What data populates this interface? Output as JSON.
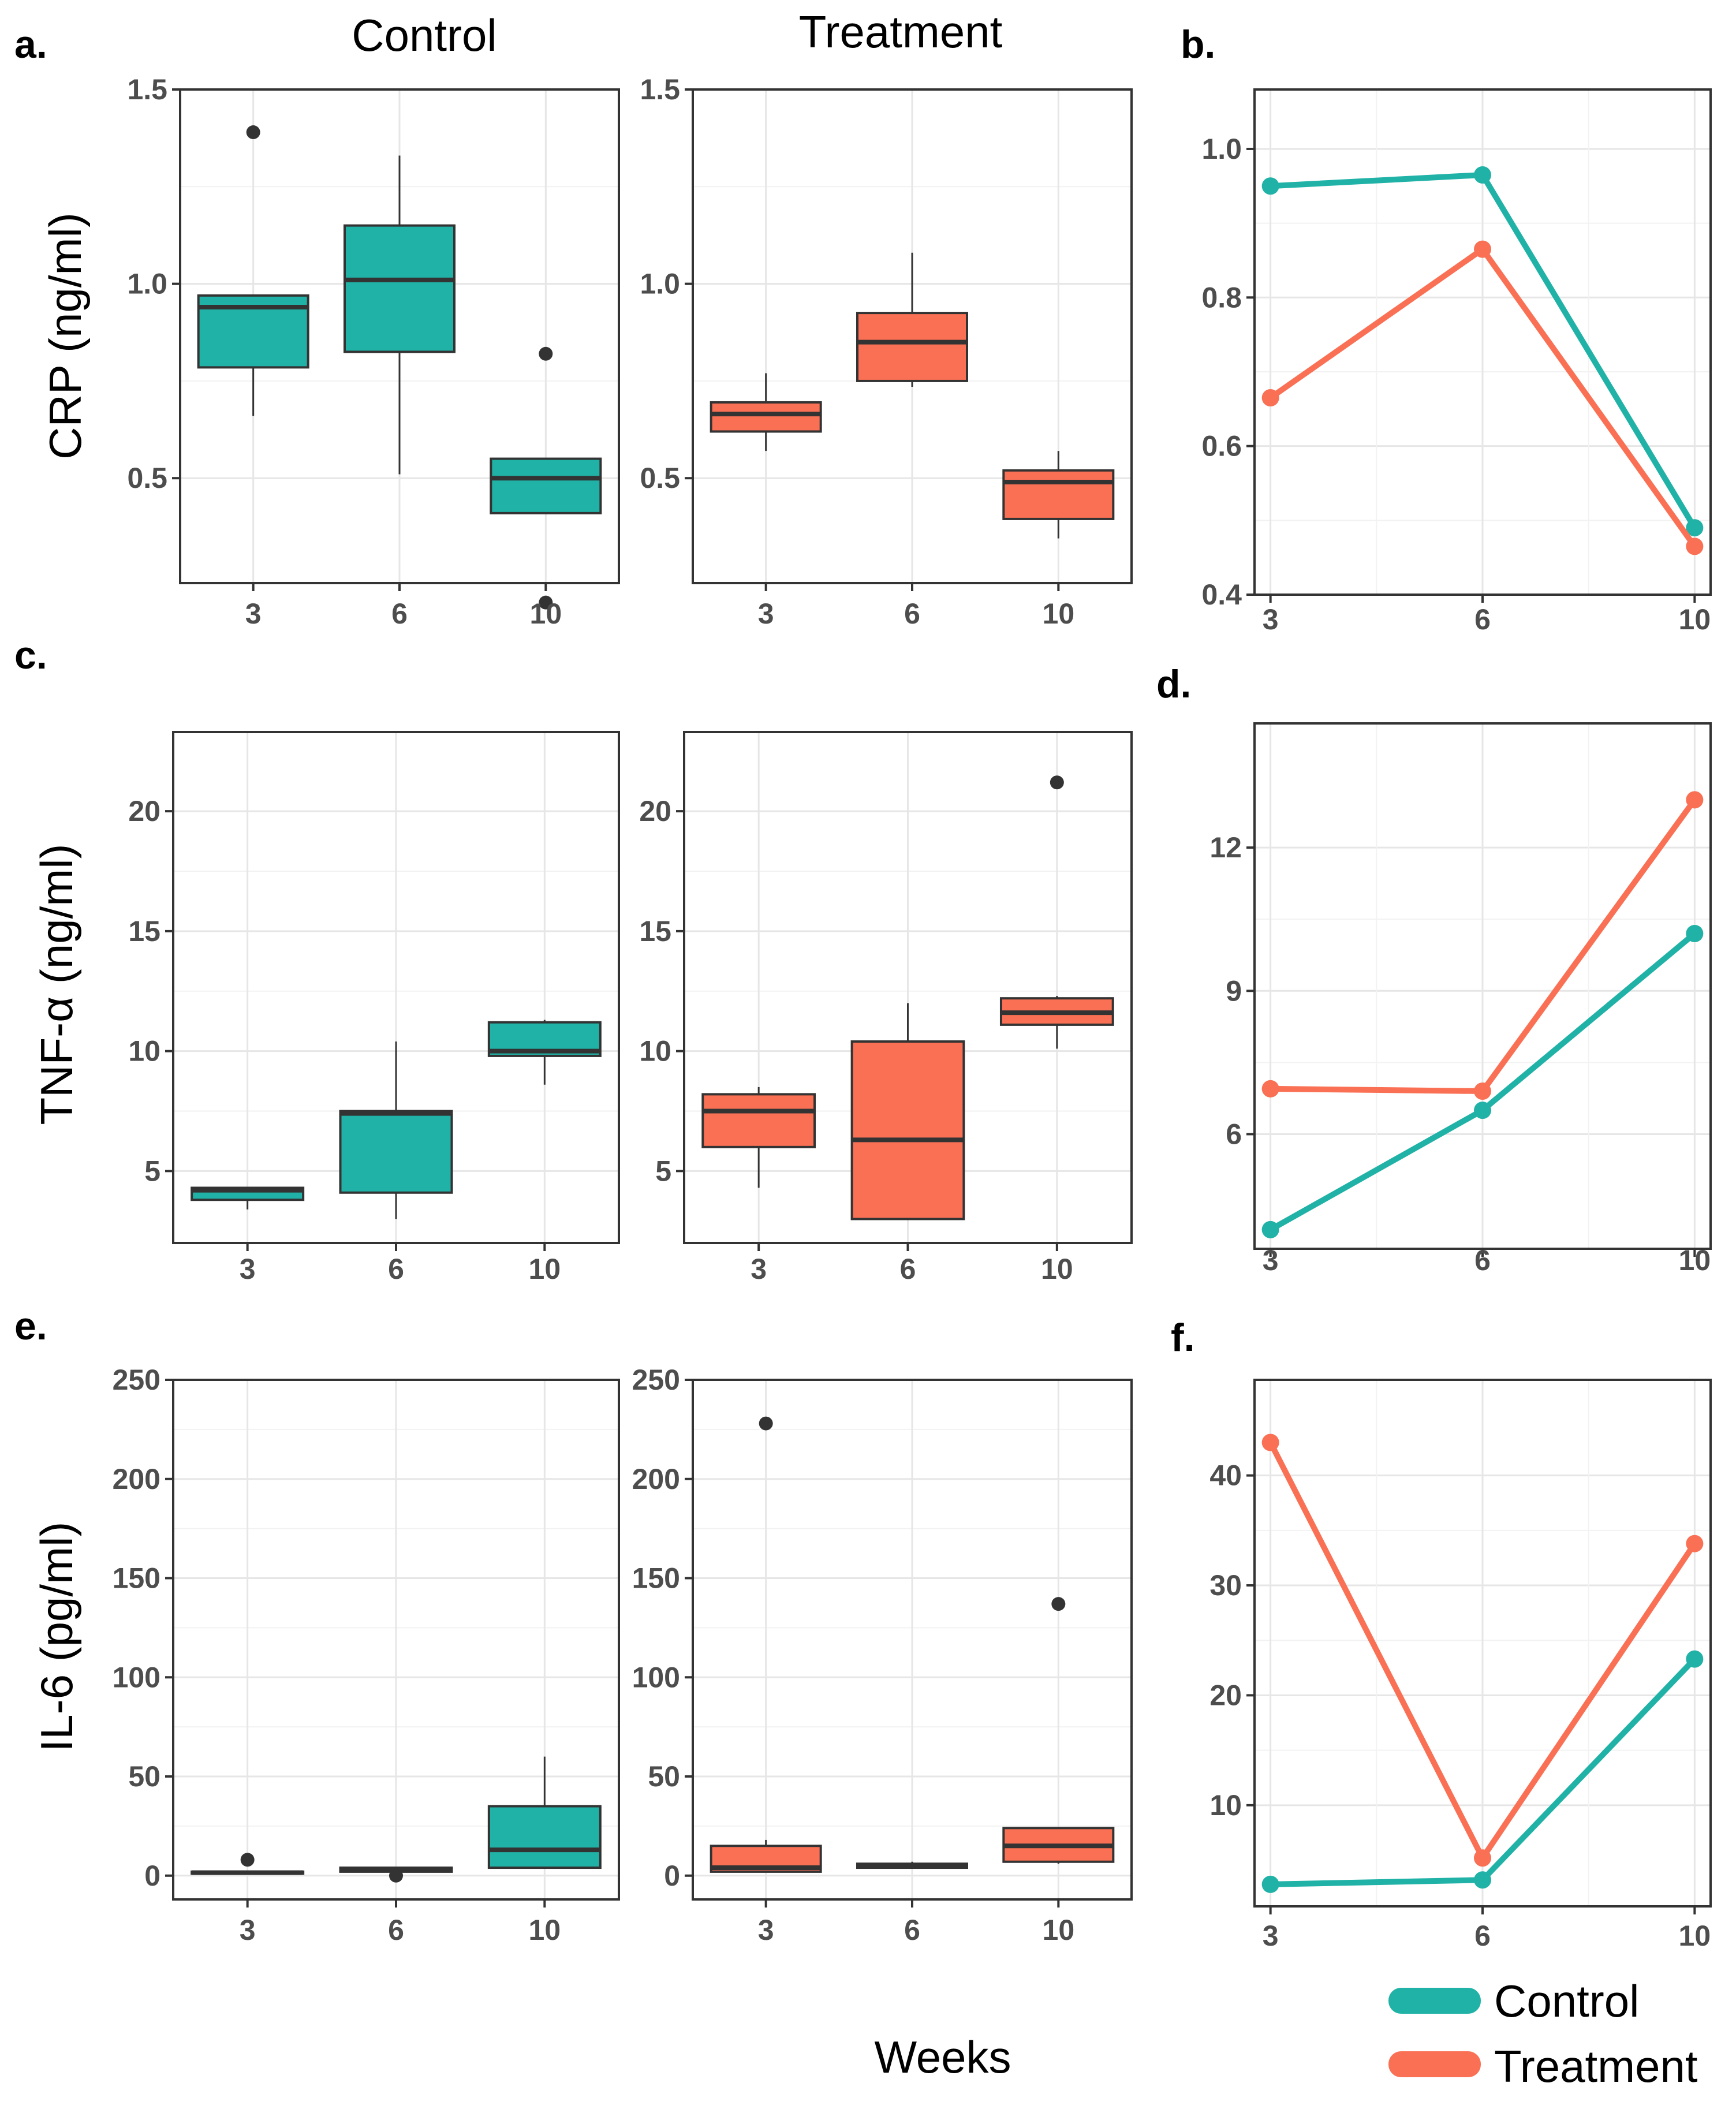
{
  "figure": {
    "column_titles": [
      "Control",
      "Treatment"
    ],
    "x_label": "Weeks",
    "legend": [
      {
        "name": "Control",
        "color": "#20B2A6"
      },
      {
        "name": "Treatment",
        "color": "#FA7054"
      }
    ]
  },
  "chart_data": [
    {
      "panel": "a.",
      "type": "box",
      "group": "Control",
      "ylabel": "CRP (ng/ml)",
      "categories": [
        "3",
        "6",
        "10"
      ],
      "ylim": [
        0.23,
        1.5
      ],
      "yticks": [
        0.5,
        1.0,
        1.5
      ],
      "ytick_labels": [
        "0.5",
        "1.0",
        "1.5"
      ],
      "boxes": [
        {
          "x": "3",
          "whisker_low": 0.66,
          "q1": 0.785,
          "median": 0.94,
          "q3": 0.97,
          "whisker_high": 0.97,
          "outliers": [
            1.39
          ]
        },
        {
          "x": "6",
          "whisker_low": 0.51,
          "q1": 0.825,
          "median": 1.01,
          "q3": 1.15,
          "whisker_high": 1.33,
          "outliers": []
        },
        {
          "x": "10",
          "whisker_low": 0.41,
          "q1": 0.41,
          "median": 0.5,
          "q3": 0.55,
          "whisker_high": 0.55,
          "outliers": [
            0.82,
            0.18
          ]
        }
      ]
    },
    {
      "panel": "",
      "type": "box",
      "group": "Treatment",
      "ylabel": "",
      "categories": [
        "3",
        "6",
        "10"
      ],
      "ylim": [
        0.23,
        1.5
      ],
      "yticks": [
        0.5,
        1.0,
        1.5
      ],
      "ytick_labels": [
        "0.5",
        "1.0",
        "1.5"
      ],
      "boxes": [
        {
          "x": "3",
          "whisker_low": 0.57,
          "q1": 0.62,
          "median": 0.665,
          "q3": 0.695,
          "whisker_high": 0.77,
          "outliers": []
        },
        {
          "x": "6",
          "whisker_low": 0.735,
          "q1": 0.75,
          "median": 0.85,
          "q3": 0.925,
          "whisker_high": 1.08,
          "outliers": []
        },
        {
          "x": "10",
          "whisker_low": 0.345,
          "q1": 0.395,
          "median": 0.49,
          "q3": 0.52,
          "whisker_high": 0.57,
          "outliers": []
        }
      ]
    },
    {
      "panel": "b.",
      "type": "line",
      "categories": [
        "3",
        "6",
        "10"
      ],
      "ylim": [
        0.4,
        1.08
      ],
      "yticks": [
        0.4,
        0.6,
        0.8,
        1.0
      ],
      "ytick_labels": [
        "0.4",
        "0.6",
        "0.8",
        "1.0"
      ],
      "series": [
        {
          "name": "Control",
          "values": [
            0.95,
            0.965,
            0.49
          ]
        },
        {
          "name": "Treatment",
          "values": [
            0.665,
            0.865,
            0.465
          ]
        }
      ]
    },
    {
      "panel": "c.",
      "type": "box",
      "group": "Control",
      "ylabel": "TNF-α (ng/ml)",
      "categories": [
        "3",
        "6",
        "10"
      ],
      "ylim": [
        2.0,
        23.3
      ],
      "yticks": [
        5,
        10,
        15,
        20
      ],
      "ytick_labels": [
        "5",
        "10",
        "15",
        "20"
      ],
      "boxes": [
        {
          "x": "3",
          "whisker_low": 3.4,
          "q1": 3.8,
          "median": 4.2,
          "q3": 4.3,
          "whisker_high": 4.3,
          "outliers": []
        },
        {
          "x": "6",
          "whisker_low": 3.0,
          "q1": 4.1,
          "median": 7.4,
          "q3": 7.5,
          "whisker_high": 10.4,
          "outliers": []
        },
        {
          "x": "10",
          "whisker_low": 8.6,
          "q1": 9.8,
          "median": 10.0,
          "q3": 11.2,
          "whisker_high": 11.3,
          "outliers": []
        }
      ]
    },
    {
      "panel": "",
      "type": "box",
      "group": "Treatment",
      "ylabel": "",
      "categories": [
        "3",
        "6",
        "10"
      ],
      "ylim": [
        2.0,
        23.3
      ],
      "yticks": [
        5,
        10,
        15,
        20
      ],
      "ytick_labels": [
        "5",
        "10",
        "15",
        "20"
      ],
      "boxes": [
        {
          "x": "3",
          "whisker_low": 4.3,
          "q1": 6.0,
          "median": 7.5,
          "q3": 8.2,
          "whisker_high": 8.5,
          "outliers": []
        },
        {
          "x": "6",
          "whisker_low": 3.0,
          "q1": 3.0,
          "median": 6.3,
          "q3": 10.4,
          "whisker_high": 12.0,
          "outliers": []
        },
        {
          "x": "10",
          "whisker_low": 10.1,
          "q1": 11.1,
          "median": 11.6,
          "q3": 12.2,
          "whisker_high": 12.3,
          "outliers": [
            21.2
          ]
        }
      ]
    },
    {
      "panel": "d.",
      "type": "line",
      "categories": [
        "3",
        "6",
        "10"
      ],
      "ylim": [
        3.6,
        14.6
      ],
      "yticks": [
        6,
        9,
        12
      ],
      "ytick_labels": [
        "6",
        "9",
        "12"
      ],
      "series": [
        {
          "name": "Control",
          "values": [
            4.0,
            6.5,
            10.2
          ]
        },
        {
          "name": "Treatment",
          "values": [
            6.95,
            6.9,
            13.0
          ]
        }
      ]
    },
    {
      "panel": "e.",
      "type": "box",
      "group": "Control",
      "ylabel": "IL-6 (pg/ml)",
      "categories": [
        "3",
        "6",
        "10"
      ],
      "ylim": [
        -12,
        250
      ],
      "yticks": [
        0,
        50,
        100,
        150,
        200,
        250
      ],
      "ytick_labels": [
        "0",
        "50",
        "100",
        "150",
        "200",
        "250"
      ],
      "boxes": [
        {
          "x": "3",
          "whisker_low": 1,
          "q1": 1,
          "median": 1.5,
          "q3": 2,
          "whisker_high": 2,
          "outliers": [
            8
          ]
        },
        {
          "x": "6",
          "whisker_low": 2,
          "q1": 2,
          "median": 3,
          "q3": 4,
          "whisker_high": 4,
          "outliers": [
            0
          ]
        },
        {
          "x": "10",
          "whisker_low": 4,
          "q1": 4,
          "median": 13,
          "q3": 35,
          "whisker_high": 60,
          "outliers": []
        }
      ]
    },
    {
      "panel": "",
      "type": "box",
      "group": "Treatment",
      "ylabel": "",
      "categories": [
        "3",
        "6",
        "10"
      ],
      "ylim": [
        -12,
        250
      ],
      "yticks": [
        0,
        50,
        100,
        150,
        200,
        250
      ],
      "ytick_labels": [
        "0",
        "50",
        "100",
        "150",
        "200",
        "250"
      ],
      "boxes": [
        {
          "x": "3",
          "whisker_low": 2,
          "q1": 2,
          "median": 4,
          "q3": 15,
          "whisker_high": 18,
          "outliers": [
            228
          ]
        },
        {
          "x": "6",
          "whisker_low": 4,
          "q1": 4,
          "median": 5,
          "q3": 6,
          "whisker_high": 7,
          "outliers": []
        },
        {
          "x": "10",
          "whisker_low": 6,
          "q1": 7,
          "median": 15,
          "q3": 24,
          "whisker_high": 24,
          "outliers": [
            137
          ]
        }
      ]
    },
    {
      "panel": "f.",
      "type": "line",
      "categories": [
        "3",
        "6",
        "10"
      ],
      "ylim": [
        0.8,
        48.7
      ],
      "yticks": [
        10,
        20,
        30,
        40
      ],
      "ytick_labels": [
        "10",
        "20",
        "30",
        "40"
      ],
      "series": [
        {
          "name": "Control",
          "values": [
            2.8,
            3.2,
            23.3
          ]
        },
        {
          "name": "Treatment",
          "values": [
            43.0,
            5.2,
            33.8
          ]
        }
      ]
    }
  ]
}
